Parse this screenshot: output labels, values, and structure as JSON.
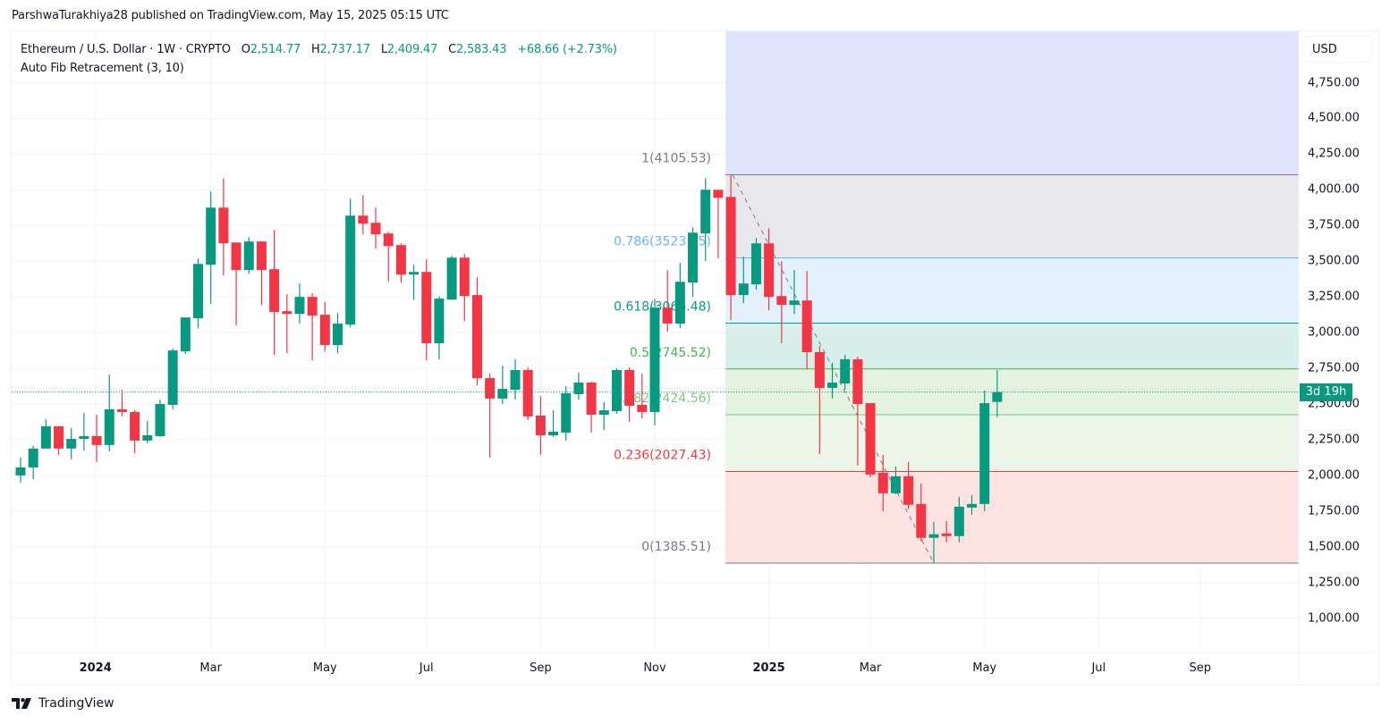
{
  "publish_line": "ParshwaTurakhiya28 published on TradingView.com, May 15, 2025 05:15 UTC",
  "legend": {
    "symbol": "Ethereum / U.S. Dollar · 1W · CRYPTO",
    "o_label": "O",
    "o_value": "2,514.77",
    "h_label": "H",
    "h_value": "2,737.17",
    "l_label": "L",
    "l_value": "2,409.47",
    "c_label": "C",
    "c_value": "2,583.43",
    "change": "+68.66 (+2.73%)",
    "indicator": "Auto Fib Retracement (3, 10)"
  },
  "currency_button": "USD",
  "countdown": "3d 19h",
  "footer_brand": "TradingView",
  "colors": {
    "up": "#089981",
    "down": "#f23645",
    "grid": "#f0f3fa"
  },
  "chart_data": {
    "type": "candlestick",
    "title": "Ethereum / U.S. Dollar · 1W · CRYPTO",
    "ylabel": "USD",
    "ylim": [
      760,
      5110
    ],
    "grid": true,
    "current_price": 2583.43,
    "y_ticks": [
      "4,750.00",
      "4,500.00",
      "4,250.00",
      "4,000.00",
      "3,750.00",
      "3,500.00",
      "3,250.00",
      "3,000.00",
      "2,750.00",
      "2,500.00",
      "2,250.00",
      "2,000.00",
      "1,750.00",
      "1,500.00",
      "1,250.00",
      "1,000.00"
    ],
    "y_tick_values": [
      4750,
      4500,
      4250,
      4000,
      3750,
      3500,
      3250,
      3000,
      2750,
      2500,
      2250,
      2000,
      1750,
      1500,
      1250,
      1000
    ],
    "x_ticks": [
      {
        "label": "2024",
        "week_index": 5.9,
        "bold": true
      },
      {
        "label": "Mar",
        "week_index": 15
      },
      {
        "label": "May",
        "week_index": 24
      },
      {
        "label": "Jul",
        "week_index": 32
      },
      {
        "label": "Sep",
        "week_index": 41
      },
      {
        "label": "Nov",
        "week_index": 50
      },
      {
        "label": "2025",
        "week_index": 59,
        "bold": true
      },
      {
        "label": "Mar",
        "week_index": 67
      },
      {
        "label": "May",
        "week_index": 76
      },
      {
        "label": "Jul",
        "week_index": 85
      },
      {
        "label": "Sep",
        "week_index": 93
      }
    ],
    "candles_ohlc": [
      [
        2000,
        2125,
        1950,
        2056
      ],
      [
        2056,
        2206,
        1975,
        2188
      ],
      [
        2188,
        2394,
        2188,
        2344
      ],
      [
        2344,
        2344,
        2144,
        2188
      ],
      [
        2188,
        2331,
        2113,
        2256
      ],
      [
        2256,
        2438,
        2175,
        2275
      ],
      [
        2275,
        2425,
        2094,
        2213
      ],
      [
        2213,
        2706,
        2169,
        2463
      ],
      [
        2463,
        2600,
        2413,
        2444
      ],
      [
        2444,
        2456,
        2156,
        2244
      ],
      [
        2244,
        2381,
        2225,
        2281
      ],
      [
        2275,
        2531,
        2269,
        2500
      ],
      [
        2494,
        2888,
        2463,
        2875
      ],
      [
        2869,
        3106,
        2850,
        3106
      ],
      [
        3100,
        3519,
        3031,
        3481
      ],
      [
        3475,
        3988,
        3200,
        3875
      ],
      [
        3875,
        4081,
        3400,
        3625
      ],
      [
        3631,
        3631,
        3050,
        3438
      ],
      [
        3438,
        3669,
        3413,
        3638
      ],
      [
        3638,
        3638,
        3194,
        3438
      ],
      [
        3444,
        3719,
        2844,
        3144
      ],
      [
        3150,
        3269,
        2856,
        3131
      ],
      [
        3131,
        3344,
        3063,
        3250
      ],
      [
        3250,
        3275,
        2806,
        3119
      ],
      [
        3125,
        3213,
        2869,
        2913
      ],
      [
        2913,
        3138,
        2856,
        3063
      ],
      [
        3056,
        3938,
        3038,
        3819
      ],
      [
        3819,
        3963,
        3688,
        3763
      ],
      [
        3769,
        3875,
        3588,
        3688
      ],
      [
        3694,
        3706,
        3356,
        3606
      ],
      [
        3613,
        3625,
        3350,
        3406
      ],
      [
        3406,
        3475,
        3231,
        3425
      ],
      [
        3425,
        3513,
        2806,
        2925
      ],
      [
        2925,
        3256,
        2813,
        3238
      ],
      [
        3231,
        3538,
        3231,
        3525
      ],
      [
        3525,
        3550,
        3081,
        3256
      ],
      [
        3263,
        3388,
        2631,
        2681
      ],
      [
        2681,
        2713,
        2125,
        2538
      ],
      [
        2538,
        2769,
        2500,
        2606
      ],
      [
        2600,
        2813,
        2531,
        2738
      ],
      [
        2738,
        2756,
        2388,
        2413
      ],
      [
        2419,
        2556,
        2144,
        2281
      ],
      [
        2281,
        2456,
        2269,
        2306
      ],
      [
        2300,
        2625,
        2244,
        2575
      ],
      [
        2569,
        2719,
        2531,
        2650
      ],
      [
        2650,
        2656,
        2300,
        2425
      ],
      [
        2425,
        2513,
        2319,
        2456
      ],
      [
        2450,
        2750,
        2431,
        2738
      ],
      [
        2738,
        2756,
        2375,
        2488
      ],
      [
        2494,
        2713,
        2400,
        2444
      ],
      [
        2444,
        3238,
        2350,
        3175
      ],
      [
        3175,
        3438,
        3006,
        3063
      ],
      [
        3063,
        3488,
        3031,
        3356
      ],
      [
        3350,
        3738,
        3250,
        3700
      ],
      [
        3694,
        4081,
        3500,
        4000
      ],
      [
        4000,
        4000,
        3519,
        3944
      ],
      [
        3950,
        4105.53,
        3088,
        3263
      ],
      [
        3263,
        3531,
        3206,
        3344
      ],
      [
        3338,
        3663,
        3300,
        3625
      ],
      [
        3625,
        3731,
        3156,
        3250
      ],
      [
        3256,
        3500,
        2925,
        3194
      ],
      [
        3194,
        3438,
        3131,
        3225
      ],
      [
        3225,
        3431,
        2744,
        2863
      ],
      [
        2863,
        2906,
        2150,
        2613
      ],
      [
        2613,
        2788,
        2538,
        2650
      ],
      [
        2644,
        2844,
        2600,
        2813
      ],
      [
        2813,
        2831,
        2069,
        2500
      ],
      [
        2506,
        2506,
        1988,
        2006
      ],
      [
        2019,
        2144,
        1750,
        1875
      ],
      [
        1875,
        2063,
        1869,
        1994
      ],
      [
        1994,
        2094,
        1763,
        1794
      ],
      [
        1800,
        1944,
        1538,
        1563
      ],
      [
        1563,
        1675,
        1385.51,
        1588
      ],
      [
        1594,
        1681,
        1531,
        1575
      ],
      [
        1575,
        1850,
        1531,
        1781
      ],
      [
        1775,
        1863,
        1725,
        1800
      ],
      [
        1800,
        2594,
        1750,
        2506
      ],
      [
        2514.77,
        2737.17,
        2409.47,
        2583.43
      ]
    ],
    "fib": {
      "start_week_index": 56,
      "anchor_high": {
        "week_index": 56,
        "price": 4105.53
      },
      "anchor_low": {
        "week_index": 72,
        "price": 1385.51
      },
      "levels": [
        {
          "ratio": 1,
          "price": 4105.53,
          "label": "1(4105.53)",
          "color": "#787b86",
          "fill": "#e8e8ea"
        },
        {
          "ratio": 0.786,
          "price": 3523.45,
          "label": "0.786(3523.45)",
          "color": "#64b5f6",
          "fill": "#e3f1fd"
        },
        {
          "ratio": 0.618,
          "price": 3066.48,
          "label": "0.618(3066.48)",
          "color": "#089981",
          "fill": "#d6efea"
        },
        {
          "ratio": 0.5,
          "price": 2745.52,
          "label": "0.5(2745.52)",
          "color": "#4caf50",
          "fill": "#e3f3e0"
        },
        {
          "ratio": 0.382,
          "price": 2424.56,
          "label": "0.382(2424.56)",
          "color": "#81c784",
          "fill": "#ebf6e8"
        },
        {
          "ratio": 0.236,
          "price": 2027.43,
          "label": "0.236(2027.43)",
          "color": "#f23645",
          "fill": "#fce3e1"
        },
        {
          "ratio": 0,
          "price": 1385.51,
          "label": "0(1385.51)",
          "color": "#787b86",
          "fill": null
        }
      ],
      "above_fill": "#dfe3fc"
    }
  }
}
